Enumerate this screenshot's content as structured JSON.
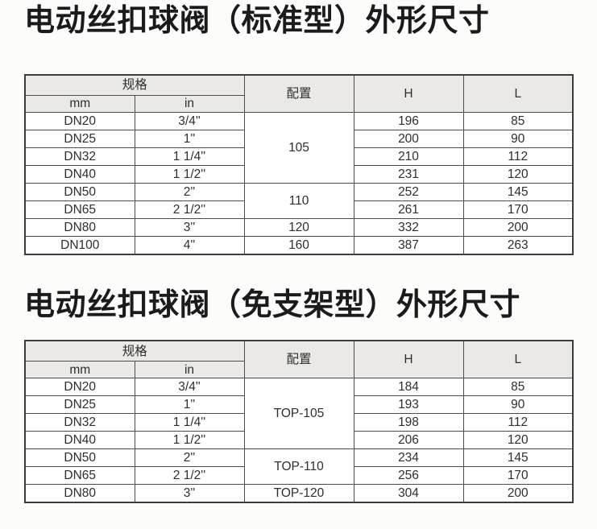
{
  "colors": {
    "header_bg": "#eae9e6",
    "border": "#4c4c4c",
    "border_outer": "#3c3c3c",
    "text": "#2e2e2e",
    "title": "#1b1b1b",
    "page_background": "#fcfcfb"
  },
  "sections": [
    {
      "title": "电动丝扣球阀（标准型）外形尺寸",
      "table": {
        "headers": {
          "spec": "规格",
          "mm": "mm",
          "in": "in",
          "config": "配置",
          "h": "H",
          "l": "L"
        },
        "rows": [
          {
            "mm": "DN20",
            "in": "3/4''",
            "config": "105",
            "config_rowspan": 4,
            "h": "196",
            "l": "85"
          },
          {
            "mm": "DN25",
            "in": "1''",
            "h": "200",
            "l": "90"
          },
          {
            "mm": "DN32",
            "in": "1 1/4''",
            "h": "210",
            "l": "112"
          },
          {
            "mm": "DN40",
            "in": "1 1/2''",
            "h": "231",
            "l": "120"
          },
          {
            "mm": "DN50",
            "in": "2''",
            "config": "110",
            "config_rowspan": 2,
            "h": "252",
            "l": "145"
          },
          {
            "mm": "DN65",
            "in": "2 1/2''",
            "h": "261",
            "l": "170"
          },
          {
            "mm": "DN80",
            "in": "3''",
            "config": "120",
            "config_rowspan": 1,
            "h": "332",
            "l": "200"
          },
          {
            "mm": "DN100",
            "in": "4''",
            "config": "160",
            "config_rowspan": 1,
            "h": "387",
            "l": "263"
          }
        ]
      }
    },
    {
      "title": "电动丝扣球阀（免支架型）外形尺寸",
      "table": {
        "headers": {
          "spec": "规格",
          "mm": "mm",
          "in": "in",
          "config": "配置",
          "h": "H",
          "l": "L"
        },
        "rows": [
          {
            "mm": "DN20",
            "in": "3/4''",
            "config": "TOP-105",
            "config_rowspan": 4,
            "h": "184",
            "l": "85"
          },
          {
            "mm": "DN25",
            "in": "1''",
            "h": "193",
            "l": "90"
          },
          {
            "mm": "DN32",
            "in": "1 1/4''",
            "h": "198",
            "l": "112"
          },
          {
            "mm": "DN40",
            "in": "1 1/2''",
            "h": "206",
            "l": "120"
          },
          {
            "mm": "DN50",
            "in": "2''",
            "config": "TOP-110",
            "config_rowspan": 2,
            "h": "234",
            "l": "145"
          },
          {
            "mm": "DN65",
            "in": "2 1/2''",
            "h": "256",
            "l": "170"
          },
          {
            "mm": "DN80",
            "in": "3''",
            "config": "TOP-120",
            "config_rowspan": 1,
            "h": "304",
            "l": "200"
          }
        ]
      }
    }
  ]
}
